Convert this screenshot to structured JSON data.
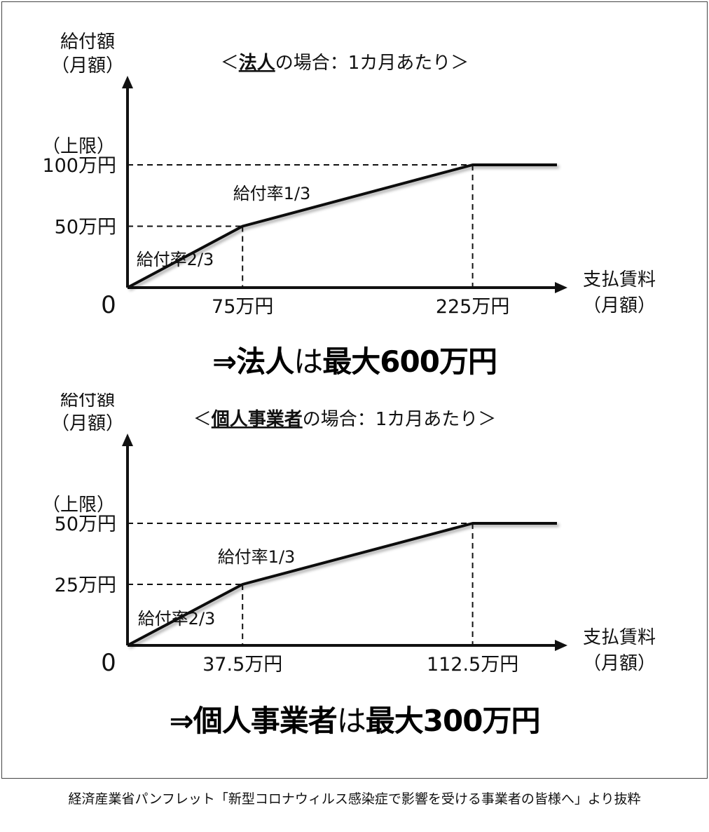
{
  "chart_data": [
    {
      "type": "line",
      "title_prefix": "＜",
      "title_entity": "法人",
      "title_suffix": "の場合：1カ月あたり＞",
      "ylabel": [
        "給付額",
        "（月額）"
      ],
      "xlabel": [
        "支払賃料",
        "（月額）"
      ],
      "origin_label": "0",
      "y_cap_label": "（上限）",
      "x_unit": "万円",
      "y_unit": "万円",
      "x": [
        0,
        75,
        225,
        280
      ],
      "y": [
        0,
        50,
        100,
        100
      ],
      "x_ticks": [
        {
          "value": 75,
          "label": "75万円"
        },
        {
          "value": 225,
          "label": "225万円"
        }
      ],
      "y_ticks": [
        {
          "value": 50,
          "label": "50万円"
        },
        {
          "value": 100,
          "label": "100万円"
        }
      ],
      "annotations": [
        "給付率2/3",
        "給付率1/3"
      ]
    },
    {
      "type": "line",
      "title_prefix": "＜",
      "title_entity": "個人事業者",
      "title_suffix": "の場合：1カ月あたり＞",
      "ylabel": [
        "給付額",
        "（月額）"
      ],
      "xlabel": [
        "支払賃料",
        "（月額）"
      ],
      "origin_label": "0",
      "y_cap_label": "（上限）",
      "x_unit": "万円",
      "y_unit": "万円",
      "x": [
        0,
        37.5,
        112.5,
        140
      ],
      "y": [
        0,
        25,
        50,
        50
      ],
      "x_ticks": [
        {
          "value": 37.5,
          "label": "37.5万円"
        },
        {
          "value": 112.5,
          "label": "112.5万円"
        }
      ],
      "y_ticks": [
        {
          "value": 25,
          "label": "25万円"
        },
        {
          "value": 50,
          "label": "50万円"
        }
      ],
      "annotations": [
        "給付率2/3",
        "給付率1/3"
      ]
    }
  ],
  "conclusions": [
    {
      "arrow": "⇒",
      "entity": "法人",
      "particle": "は",
      "rest": "最大600万円"
    },
    {
      "arrow": "⇒",
      "entity": "個人事業者",
      "particle": "は",
      "rest": "最大300万円"
    }
  ],
  "caption": "経済産業省パンフレット「新型コロナウィルス感染症で影響を受ける事業者の皆様へ」より抜粋"
}
